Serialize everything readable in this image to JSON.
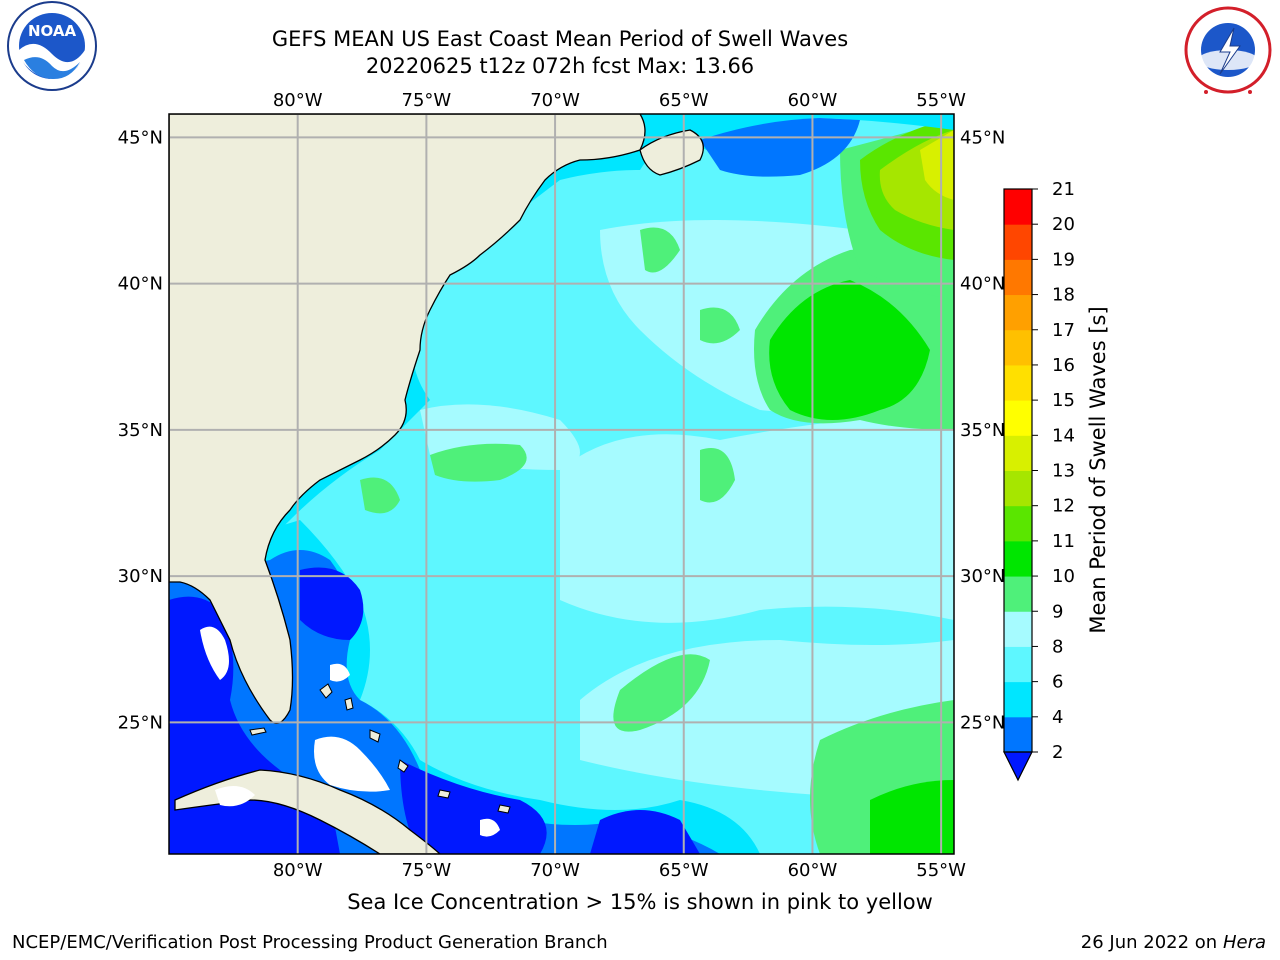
{
  "title": {
    "line1": "GEFS MEAN US East Coast Mean Period of Swell Waves",
    "line2": "20220625 t12z 072h fcst   Max: 13.66"
  },
  "map": {
    "lon_range": [
      -85,
      -54.5
    ],
    "lat_range": [
      20.5,
      45.8
    ],
    "meridians": [
      {
        "lon": -80,
        "label": "80°W"
      },
      {
        "lon": -75,
        "label": "75°W"
      },
      {
        "lon": -70,
        "label": "70°W"
      },
      {
        "lon": -65,
        "label": "65°W"
      },
      {
        "lon": -60,
        "label": "60°W"
      },
      {
        "lon": -55,
        "label": "55°W"
      }
    ],
    "parallels": [
      {
        "lat": 25,
        "label": "25°N"
      },
      {
        "lat": 30,
        "label": "30°N"
      },
      {
        "lat": 35,
        "label": "35°N"
      },
      {
        "lat": 40,
        "label": "40°N"
      },
      {
        "lat": 45,
        "label": "45°N"
      }
    ],
    "land_color": "#eeeedc",
    "grid_color": "#b0b0b0"
  },
  "colorbar": {
    "label": "Mean Period of Swell Waves [s]",
    "ticks": [
      "2",
      "4",
      "6",
      "8",
      "9",
      "10",
      "11",
      "12",
      "13",
      "14",
      "15",
      "16",
      "17",
      "18",
      "19",
      "20",
      "21"
    ],
    "colors": [
      "#0076ff",
      "#00e6ff",
      "#5ef7ff",
      "#a6fbff",
      "#4ff07a",
      "#00e600",
      "#5ae600",
      "#a6e600",
      "#d8f000",
      "#ffff00",
      "#ffe000",
      "#ffc000",
      "#ffa000",
      "#ff7800",
      "#ff4600",
      "#ff0000"
    ],
    "under_color": "#0018ff"
  },
  "footer": {
    "sea_ice": "Sea Ice Concentration > 15% is shown in pink to yellow",
    "credit_left": "NCEP/EMC/Verification Post Processing Product Generation Branch",
    "credit_date": "26 Jun 2022 on",
    "credit_host": "Hera"
  },
  "logos": {
    "noaa": "NOAA",
    "nws": "NATIONAL WEATHER SERVICE"
  }
}
